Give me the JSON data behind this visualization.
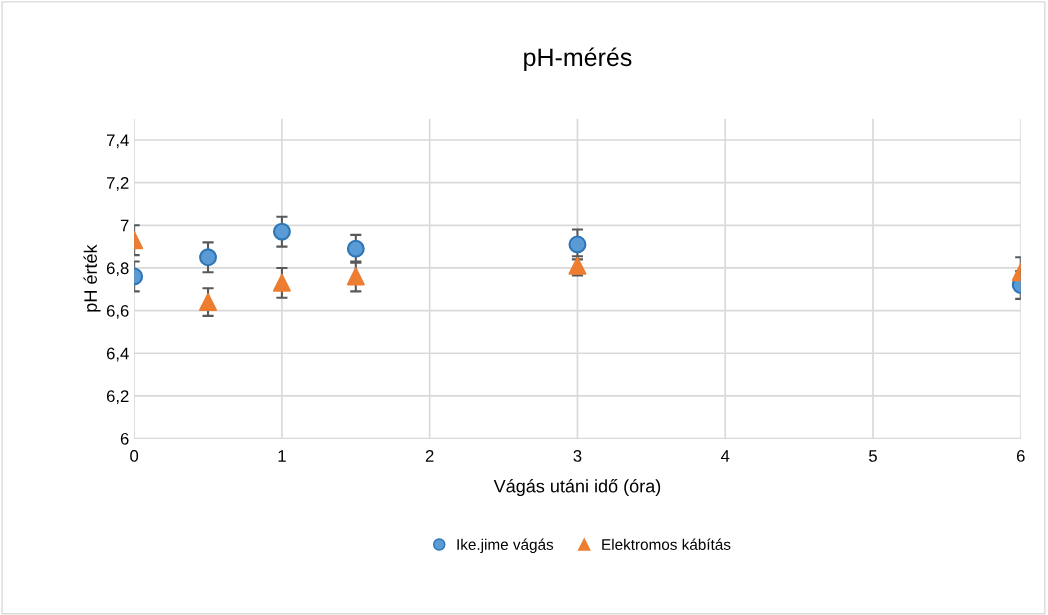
{
  "chart_data": {
    "type": "scatter",
    "title": "pH-mérés",
    "xlabel": "Vágás utáni idő (óra)",
    "ylabel": "pH érték",
    "x": [
      0,
      0.5,
      1,
      1.5,
      3,
      6
    ],
    "series": [
      {
        "name": "Ike.jime vágás",
        "color": "#5b9bd5",
        "marker": "circle",
        "values": [
          6.76,
          6.85,
          6.97,
          6.89,
          6.91,
          6.72
        ],
        "errors": [
          0.07,
          0.07,
          0.07,
          0.065,
          0.07,
          0.065
        ]
      },
      {
        "name": "Elektromos kábítás",
        "color": "#ed7d31",
        "marker": "triangle",
        "values": [
          6.93,
          6.64,
          6.73,
          6.76,
          6.81,
          6.78
        ],
        "errors": [
          0.07,
          0.065,
          0.07,
          0.07,
          0.045,
          0.07
        ]
      }
    ],
    "xlim": [
      0,
      6
    ],
    "xticks": [
      0,
      1,
      2,
      3,
      4,
      5,
      6
    ],
    "ylim": [
      6,
      7.5
    ],
    "yticks": [
      6,
      {
        "value": 6.2,
        "label": "6,2"
      },
      {
        "value": 6.4,
        "label": "6,4"
      },
      {
        "value": 6.6,
        "label": "6,6"
      },
      {
        "value": 6.8,
        "label": "6,8"
      },
      7,
      {
        "value": 7.2,
        "label": "7,2"
      },
      {
        "value": 7.4,
        "label": "7,4"
      }
    ],
    "grid": true,
    "legend": "bottom"
  }
}
